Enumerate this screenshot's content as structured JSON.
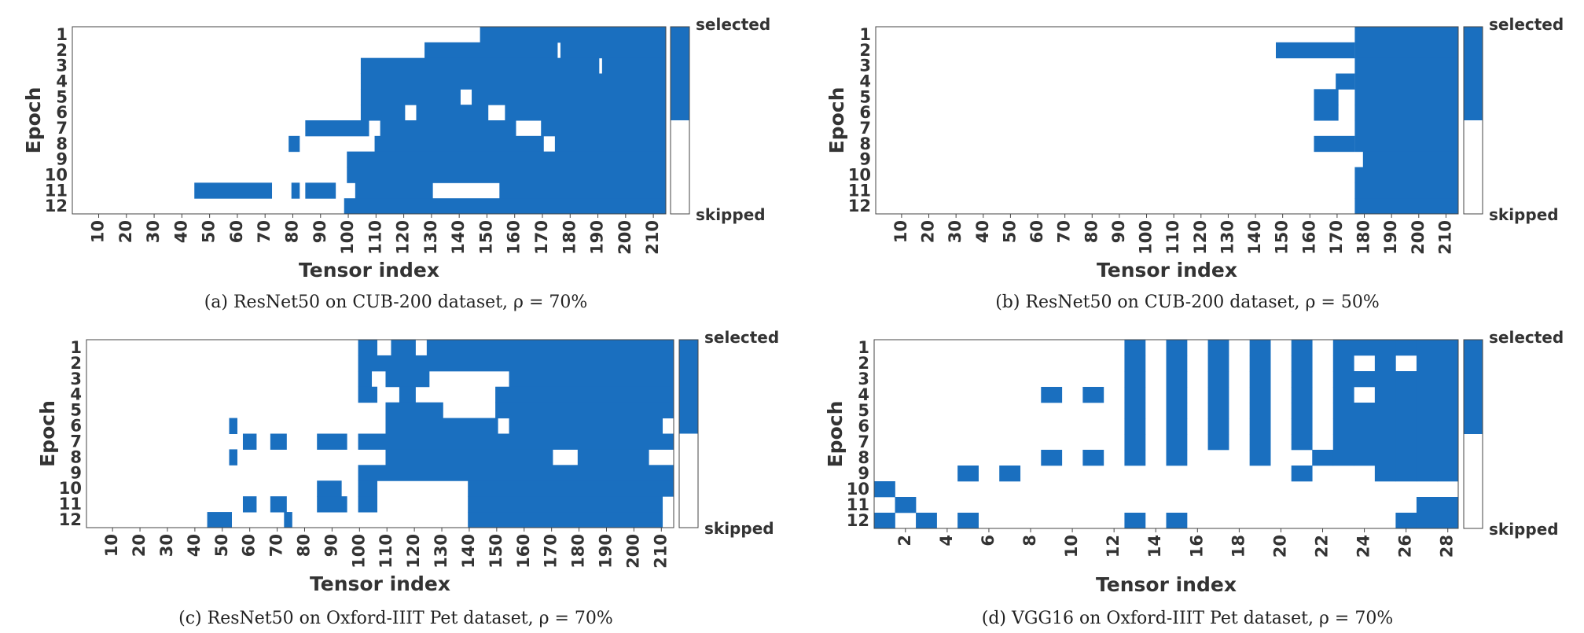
{
  "chart_data": [
    {
      "type": "heatmap",
      "caption": "(a)  ResNet50 on CUB-200 dataset, ρ = 70%",
      "xlabel": "Tensor index",
      "ylabel": "Epoch",
      "rows": [
        "1",
        "2",
        "3",
        "4",
        "5",
        "6",
        "7",
        "8",
        "9",
        "10",
        "11",
        "12"
      ],
      "n_cols": 214,
      "x_ticks": [
        10,
        20,
        30,
        40,
        50,
        60,
        70,
        80,
        90,
        100,
        110,
        120,
        130,
        140,
        150,
        160,
        170,
        180,
        190,
        200,
        210
      ],
      "colorbar": {
        "top_label": "selected",
        "bottom_label": "skipped",
        "selected_color": "#1a6fbf"
      },
      "selected_runs": [
        [
          [
            148,
            214
          ]
        ],
        [
          [
            128,
            175
          ],
          [
            177,
            214
          ]
        ],
        [
          [
            105,
            190
          ],
          [
            192,
            214
          ]
        ],
        [
          [
            105,
            214
          ]
        ],
        [
          [
            105,
            140
          ],
          [
            145,
            214
          ]
        ],
        [
          [
            105,
            120
          ],
          [
            125,
            150
          ],
          [
            157,
            214
          ]
        ],
        [
          [
            85,
            107
          ],
          [
            112,
            160
          ],
          [
            170,
            214
          ]
        ],
        [
          [
            79,
            82
          ],
          [
            110,
            170
          ],
          [
            175,
            214
          ]
        ],
        [
          [
            100,
            214
          ]
        ],
        [
          [
            100,
            214
          ]
        ],
        [
          [
            45,
            72
          ],
          [
            80,
            82
          ],
          [
            85,
            95
          ],
          [
            103,
            130
          ],
          [
            155,
            214
          ]
        ],
        [
          [
            99,
            214
          ]
        ]
      ]
    },
    {
      "type": "heatmap",
      "caption": "(b)  ResNet50 on CUB-200 dataset, ρ = 50%",
      "xlabel": "Tensor index",
      "ylabel": "Epoch",
      "rows": [
        "1",
        "2",
        "3",
        "4",
        "5",
        "6",
        "7",
        "8",
        "9",
        "10",
        "11",
        "12"
      ],
      "n_cols": 214,
      "x_ticks": [
        10,
        20,
        30,
        40,
        50,
        60,
        70,
        80,
        90,
        100,
        110,
        120,
        130,
        140,
        150,
        160,
        170,
        180,
        190,
        200,
        210
      ],
      "colorbar": {
        "top_label": "selected",
        "bottom_label": "skipped",
        "selected_color": "#1a6fbf"
      },
      "selected_runs": [
        [
          [
            177,
            214
          ]
        ],
        [
          [
            148,
            176
          ],
          [
            177,
            214
          ]
        ],
        [
          [
            177,
            214
          ]
        ],
        [
          [
            170,
            176
          ],
          [
            177,
            214
          ]
        ],
        [
          [
            162,
            170
          ],
          [
            177,
            214
          ]
        ],
        [
          [
            162,
            170
          ],
          [
            177,
            214
          ]
        ],
        [
          [
            177,
            214
          ]
        ],
        [
          [
            162,
            176
          ],
          [
            177,
            214
          ]
        ],
        [
          [
            180,
            214
          ]
        ],
        [
          [
            177,
            214
          ]
        ],
        [
          [
            177,
            214
          ]
        ],
        [
          [
            177,
            214
          ]
        ]
      ]
    },
    {
      "type": "heatmap",
      "caption": "(c)  ResNet50 on Oxford-IIIT Pet dataset, ρ = 70%",
      "xlabel": "Tensor index",
      "ylabel": "Epoch",
      "rows": [
        "1",
        "2",
        "3",
        "4",
        "5",
        "6",
        "7",
        "8",
        "9",
        "10",
        "11",
        "12"
      ],
      "n_cols": 214,
      "x_ticks": [
        10,
        20,
        30,
        40,
        50,
        60,
        70,
        80,
        90,
        100,
        110,
        120,
        130,
        140,
        150,
        160,
        170,
        180,
        190,
        200,
        210
      ],
      "colorbar": {
        "top_label": "selected",
        "bottom_label": "skipped",
        "selected_color": "#1a6fbf"
      },
      "selected_runs": [
        [
          [
            100,
            106
          ],
          [
            112,
            120
          ],
          [
            125,
            214
          ]
        ],
        [
          [
            100,
            214
          ]
        ],
        [
          [
            100,
            104
          ],
          [
            110,
            125
          ],
          [
            155,
            214
          ]
        ],
        [
          [
            100,
            106
          ],
          [
            115,
            120
          ],
          [
            150,
            214
          ]
        ],
        [
          [
            110,
            130
          ],
          [
            150,
            214
          ]
        ],
        [
          [
            53,
            55
          ],
          [
            110,
            150
          ],
          [
            155,
            210
          ]
        ],
        [
          [
            58,
            62
          ],
          [
            68,
            73
          ],
          [
            85,
            95
          ],
          [
            100,
            214
          ]
        ],
        [
          [
            53,
            55
          ],
          [
            110,
            170
          ],
          [
            180,
            205
          ]
        ],
        [
          [
            100,
            214
          ]
        ],
        [
          [
            85,
            93
          ],
          [
            100,
            106
          ],
          [
            140,
            214
          ]
        ],
        [
          [
            58,
            62
          ],
          [
            68,
            73
          ],
          [
            85,
            95
          ],
          [
            100,
            106
          ],
          [
            140,
            210
          ]
        ],
        [
          [
            45,
            53
          ],
          [
            73,
            75
          ],
          [
            140,
            210
          ]
        ]
      ]
    },
    {
      "type": "heatmap",
      "caption": "(d)  VGG16 on Oxford-IIIT Pet dataset, ρ = 70%",
      "xlabel": "Tensor index",
      "ylabel": "Epoch",
      "rows": [
        "1",
        "2",
        "3",
        "4",
        "5",
        "6",
        "7",
        "8",
        "9",
        "10",
        "11",
        "12"
      ],
      "n_cols": 28,
      "x_ticks": [
        2,
        4,
        6,
        8,
        10,
        12,
        14,
        16,
        18,
        20,
        22,
        24,
        26,
        28
      ],
      "colorbar": {
        "top_label": "selected",
        "bottom_label": "skipped",
        "selected_color": "#1a6fbf"
      },
      "cells": [
        [
          13,
          15,
          17,
          19,
          21,
          23,
          24,
          25,
          26,
          27,
          28
        ],
        [
          13,
          15,
          17,
          19,
          21,
          23,
          25,
          27,
          28
        ],
        [
          13,
          15,
          17,
          19,
          21,
          23,
          24,
          25,
          26,
          27,
          28
        ],
        [
          9,
          11,
          13,
          15,
          17,
          19,
          21,
          23,
          25,
          26,
          27,
          28
        ],
        [
          13,
          15,
          17,
          19,
          21,
          23,
          24,
          25,
          26,
          27,
          28
        ],
        [
          13,
          15,
          17,
          19,
          21,
          23,
          24,
          25,
          26,
          27,
          28
        ],
        [
          13,
          15,
          17,
          19,
          21,
          23,
          24,
          25,
          26,
          27,
          28
        ],
        [
          9,
          11,
          13,
          15,
          19,
          22,
          23,
          24,
          25,
          26,
          27,
          28
        ],
        [
          5,
          7,
          21,
          25,
          26,
          27,
          28
        ],
        [
          1
        ],
        [
          2,
          27,
          28
        ],
        [
          1,
          3,
          5,
          13,
          15,
          26,
          27,
          28
        ]
      ]
    }
  ]
}
